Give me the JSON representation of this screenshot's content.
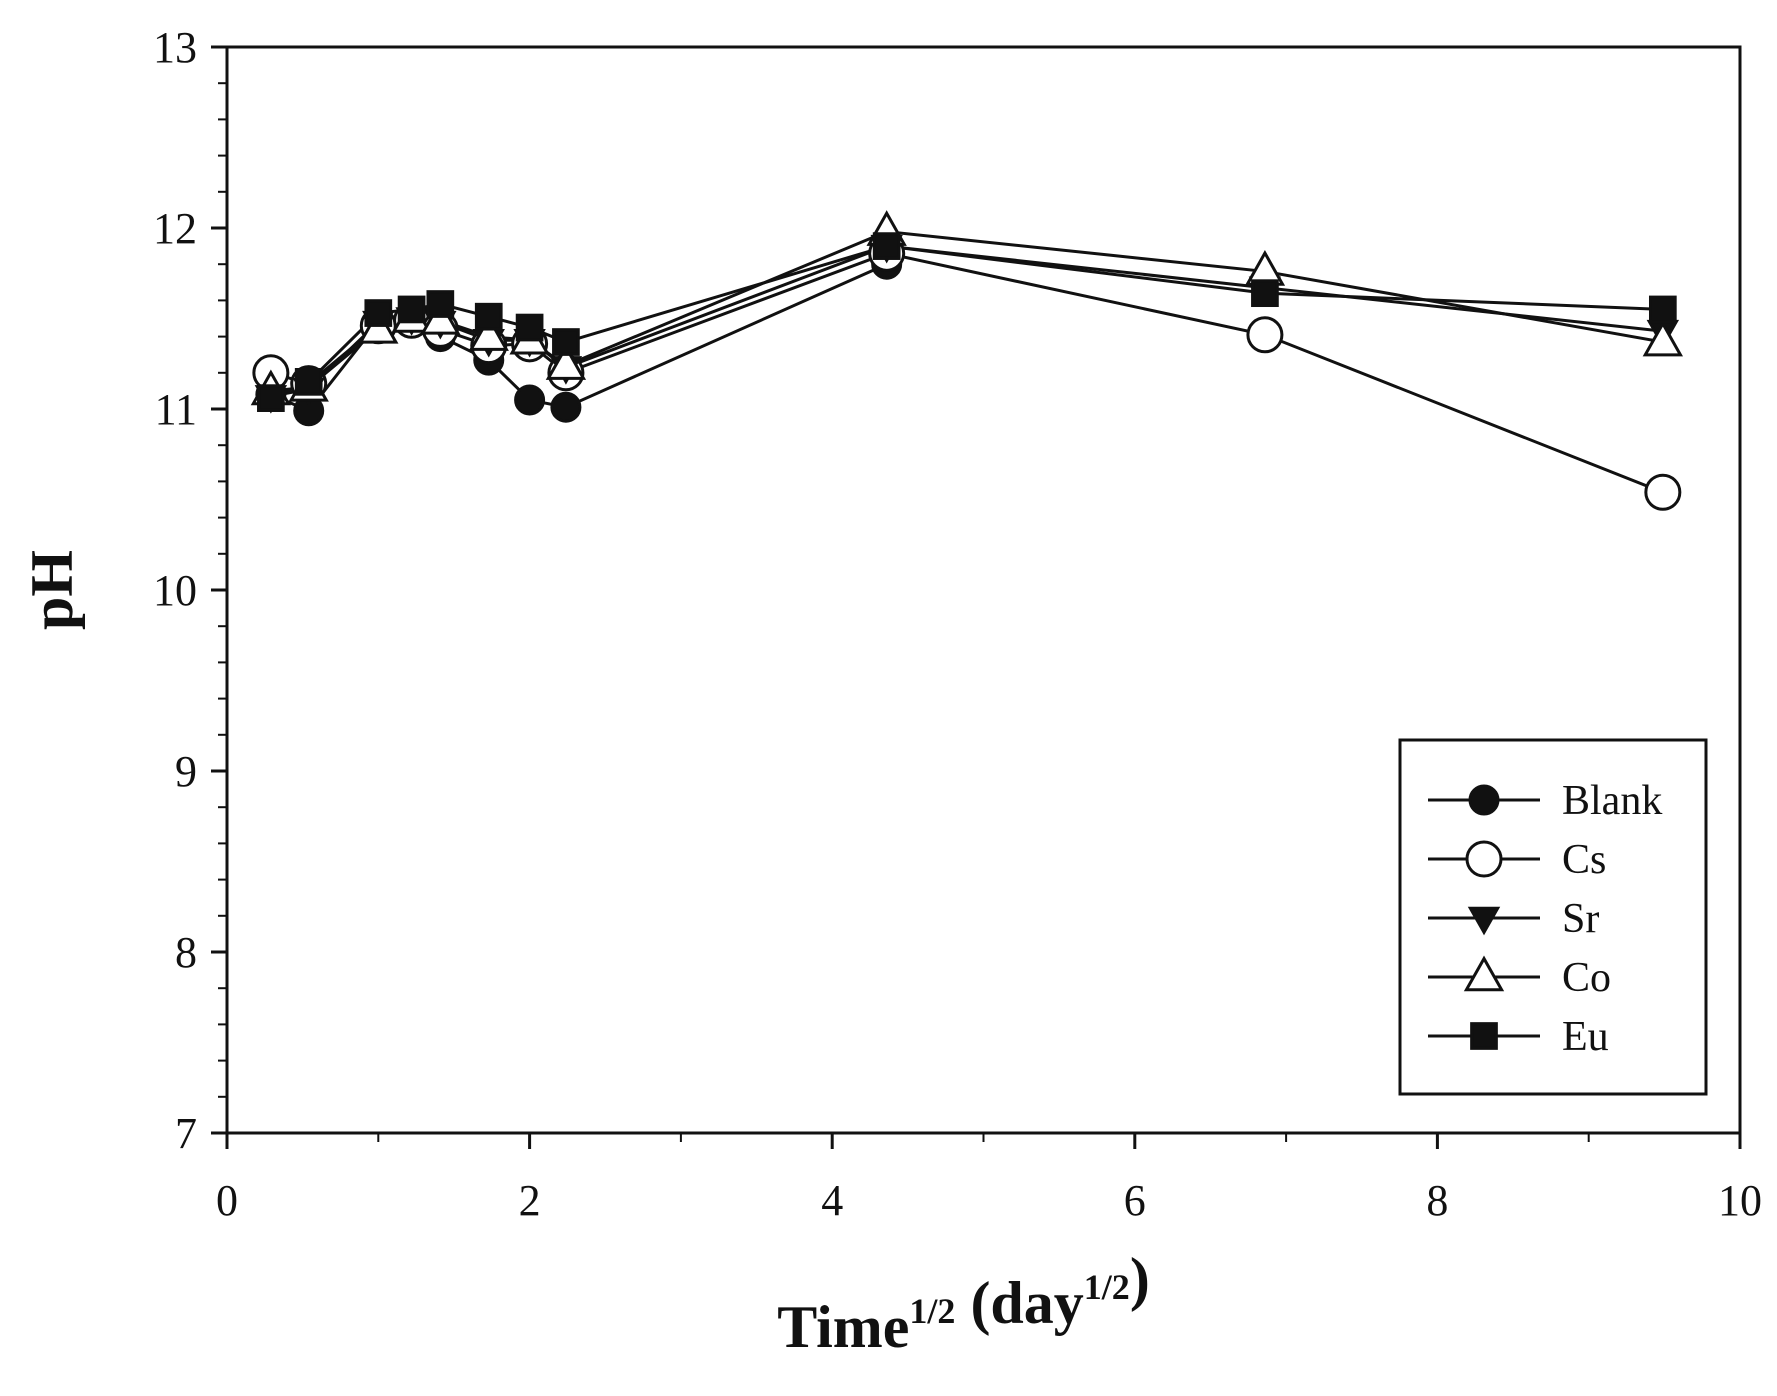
{
  "chart_data": {
    "type": "line",
    "title": "",
    "xlabel": {
      "main": "Time",
      "sup": "1/2",
      "unit_open": " (day",
      "unit_sup": "1/2",
      "unit_close": ")"
    },
    "ylabel": "pH",
    "xlim": [
      0,
      10
    ],
    "ylim": [
      7,
      13
    ],
    "xticks": [
      0,
      2,
      4,
      6,
      8,
      10
    ],
    "yticks": [
      7,
      8,
      9,
      10,
      11,
      12,
      13
    ],
    "grid": false,
    "legend_position": "bottom-right",
    "x": [
      0.29,
      0.54,
      1.0,
      1.22,
      1.41,
      1.73,
      2.0,
      2.24,
      4.36,
      6.86,
      9.49
    ],
    "series": [
      {
        "name": "Blank",
        "marker": "circle-filled",
        "values": [
          11.08,
          10.99,
          11.48,
          11.5,
          11.4,
          11.27,
          11.05,
          11.01,
          11.8,
          null,
          null
        ]
      },
      {
        "name": "Cs",
        "marker": "circle-open",
        "values": [
          11.2,
          11.14,
          11.46,
          11.49,
          11.44,
          11.35,
          11.36,
          11.2,
          11.86,
          11.41,
          10.54
        ]
      },
      {
        "name": "Sr",
        "marker": "triangle-down-filled",
        "values": [
          11.07,
          11.11,
          11.48,
          11.5,
          11.48,
          11.38,
          11.38,
          11.23,
          11.9,
          11.67,
          11.43
        ]
      },
      {
        "name": "Co",
        "marker": "triangle-up-open",
        "values": [
          11.1,
          11.12,
          11.44,
          11.5,
          11.49,
          11.4,
          11.38,
          11.24,
          11.98,
          11.76,
          11.37
        ]
      },
      {
        "name": "Eu",
        "marker": "square-filled",
        "values": [
          11.06,
          11.15,
          11.53,
          11.55,
          11.58,
          11.51,
          11.45,
          11.37,
          11.9,
          11.64,
          11.55
        ]
      }
    ]
  }
}
